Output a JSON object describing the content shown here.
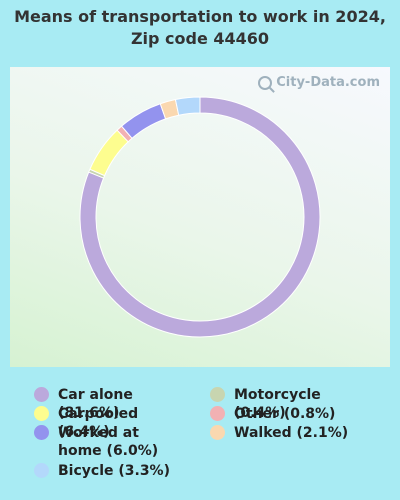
{
  "title": "Means of transportation to work in 2024, Zip code 44460",
  "watermark": "City-Data.com",
  "chart_data": {
    "type": "pie",
    "style": "donut",
    "start": "top, clockwise",
    "slices": [
      {
        "label": "Car alone",
        "value": 81.6,
        "legend": "Car alone (81.6%)",
        "color": "#bba9dc"
      },
      {
        "label": "Motorcycle",
        "value": 0.4,
        "legend": "Motorcycle (0.4%)",
        "color": "#c8d5b0"
      },
      {
        "label": "Carpooled",
        "value": 6.4,
        "legend": "Carpooled (6.4%)",
        "color": "#fdfd8f"
      },
      {
        "label": "Other",
        "value": 0.8,
        "legend": "Other (0.8%)",
        "color": "#f2b1b3"
      },
      {
        "label": "Worked at home",
        "value": 6.0,
        "legend": "Worked at home (6.0%)",
        "color": "#9393ee"
      },
      {
        "label": "Walked",
        "value": 2.1,
        "legend": "Walked (2.1%)",
        "color": "#fad8b0"
      },
      {
        "label": "Bicycle",
        "value": 3.3,
        "legend": "Bicycle (3.3%)",
        "color": "#b3d8fb"
      }
    ]
  }
}
